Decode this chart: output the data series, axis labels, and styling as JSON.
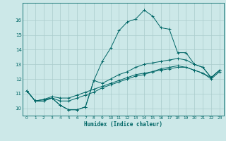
{
  "xlabel": "Humidex (Indice chaleur)",
  "bg_color": "#cce8e8",
  "grid_color": "#aacccc",
  "line_color": "#006666",
  "xlim": [
    -0.5,
    23.5
  ],
  "ylim": [
    9.5,
    17.2
  ],
  "xticks": [
    0,
    1,
    2,
    3,
    4,
    5,
    6,
    7,
    8,
    9,
    10,
    11,
    12,
    13,
    14,
    15,
    16,
    17,
    18,
    19,
    20,
    21,
    22,
    23
  ],
  "yticks": [
    10,
    11,
    12,
    13,
    14,
    15,
    16
  ],
  "series": [
    {
      "x": [
        0,
        1,
        2,
        3,
        4,
        5,
        6,
        7,
        8,
        9,
        10,
        11,
        12,
        13,
        14,
        15,
        16,
        17,
        18,
        19,
        20,
        21,
        22,
        23
      ],
      "y": [
        11.2,
        10.5,
        10.5,
        10.7,
        10.2,
        9.9,
        9.9,
        10.1,
        11.9,
        13.2,
        14.1,
        15.3,
        15.9,
        16.1,
        16.7,
        16.3,
        15.5,
        15.4,
        13.8,
        13.8,
        13.0,
        12.8,
        12.1,
        12.6
      ]
    },
    {
      "x": [
        0,
        1,
        2,
        3,
        4,
        5,
        6,
        7,
        8,
        9,
        10,
        11,
        12,
        13,
        14,
        15,
        16,
        17,
        18,
        19,
        20,
        21,
        22,
        23
      ],
      "y": [
        11.2,
        10.5,
        10.5,
        10.7,
        10.2,
        9.9,
        9.9,
        10.1,
        11.9,
        11.7,
        12.0,
        12.3,
        12.5,
        12.8,
        13.0,
        13.1,
        13.2,
        13.3,
        13.4,
        13.3,
        13.0,
        12.8,
        12.1,
        12.6
      ]
    },
    {
      "x": [
        0,
        1,
        2,
        3,
        4,
        5,
        6,
        7,
        8,
        9,
        10,
        11,
        12,
        13,
        14,
        15,
        16,
        17,
        18,
        19,
        20,
        21,
        22,
        23
      ],
      "y": [
        11.2,
        10.5,
        10.6,
        10.7,
        10.5,
        10.5,
        10.7,
        10.9,
        11.1,
        11.4,
        11.6,
        11.8,
        12.0,
        12.2,
        12.3,
        12.5,
        12.6,
        12.7,
        12.8,
        12.8,
        12.6,
        12.4,
        12.0,
        12.5
      ]
    },
    {
      "x": [
        0,
        1,
        2,
        3,
        4,
        5,
        6,
        7,
        8,
        9,
        10,
        11,
        12,
        13,
        14,
        15,
        16,
        17,
        18,
        19,
        20,
        21,
        22,
        23
      ],
      "y": [
        11.2,
        10.5,
        10.6,
        10.8,
        10.7,
        10.7,
        10.9,
        11.1,
        11.3,
        11.5,
        11.7,
        11.9,
        12.1,
        12.3,
        12.4,
        12.5,
        12.7,
        12.8,
        12.9,
        12.8,
        12.6,
        12.4,
        12.1,
        12.6
      ]
    }
  ]
}
